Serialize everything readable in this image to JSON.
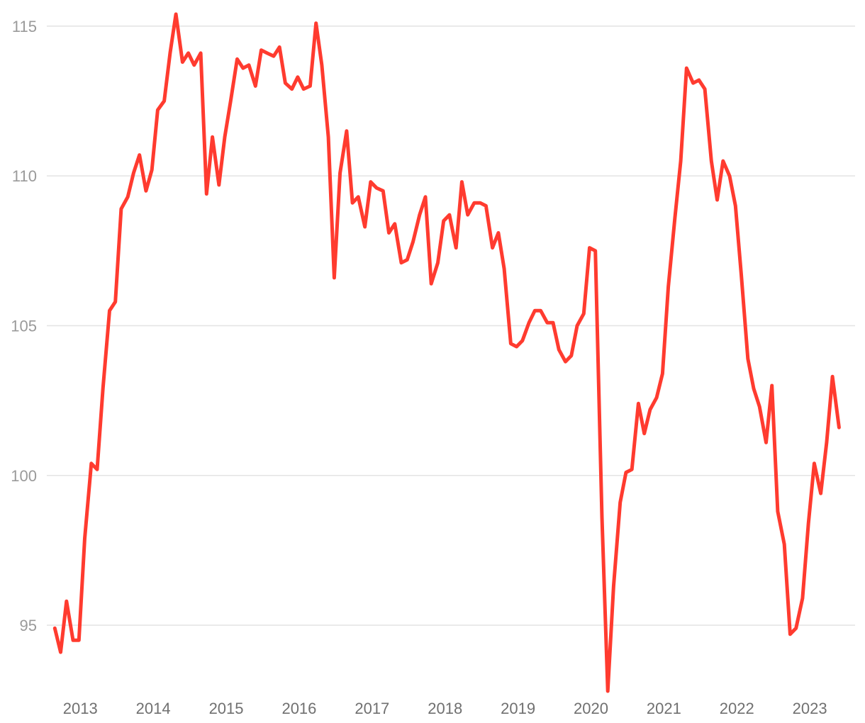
{
  "chart_data": {
    "type": "line",
    "title": "",
    "xlabel": "",
    "ylabel": "",
    "ylim": [
      92.8,
      115.4
    ],
    "xlim": [
      2012.56,
      2023.64
    ],
    "grid": true,
    "legend": "none",
    "y_ticks": [
      "95",
      "100",
      "105",
      "110",
      "115"
    ],
    "x_ticks": [
      "2013",
      "2014",
      "2015",
      "2016",
      "2017",
      "2018",
      "2019",
      "2020",
      "2021",
      "2022",
      "2023"
    ],
    "colors": {
      "line": "#ff3b2f",
      "grid": "#e3e3e3",
      "tick": "#9a9a9a"
    },
    "series": [
      {
        "x": [
          2012.67,
          2012.75,
          2012.83,
          2012.92,
          2013.0,
          2013.08,
          2013.17,
          2013.25,
          2013.33,
          2013.42,
          2013.5,
          2013.58,
          2013.67,
          2013.75,
          2013.83,
          2013.92,
          2014.0,
          2014.08,
          2014.17,
          2014.25,
          2014.33,
          2014.42,
          2014.5,
          2014.58,
          2014.67,
          2014.75,
          2014.83,
          2014.92,
          2015.0,
          2015.08,
          2015.17,
          2015.25,
          2015.33,
          2015.42,
          2015.5,
          2015.58,
          2015.67,
          2015.75,
          2015.83,
          2015.92,
          2016.0,
          2016.08,
          2016.17,
          2016.25,
          2016.33,
          2016.42,
          2016.5,
          2016.58,
          2016.67,
          2016.75,
          2016.83,
          2016.92,
          2017.0,
          2017.08,
          2017.17,
          2017.25,
          2017.33,
          2017.42,
          2017.5,
          2017.58,
          2017.67,
          2017.75,
          2017.83,
          2017.92,
          2018.0,
          2018.08,
          2018.17,
          2018.25,
          2018.33,
          2018.42,
          2018.5,
          2018.58,
          2018.67,
          2018.75,
          2018.83,
          2018.92,
          2019.0,
          2019.08,
          2019.17,
          2019.25,
          2019.33,
          2019.42,
          2019.5,
          2019.58,
          2019.67,
          2019.75,
          2019.83,
          2019.92,
          2020.0,
          2020.08,
          2020.17,
          2020.25,
          2020.33,
          2020.42,
          2020.5,
          2020.58,
          2020.67,
          2020.75,
          2020.83,
          2020.92,
          2021.0,
          2021.08,
          2021.17,
          2021.25,
          2021.33,
          2021.42,
          2021.5,
          2021.58,
          2021.67,
          2021.75,
          2021.83,
          2021.92,
          2022.0,
          2022.08,
          2022.17,
          2022.25,
          2022.33,
          2022.42,
          2022.5,
          2022.58,
          2022.67,
          2022.75,
          2022.83,
          2022.92,
          2023.0,
          2023.08,
          2023.17,
          2023.25,
          2023.33,
          2023.42
        ],
        "values": [
          94.9,
          94.1,
          95.8,
          94.5,
          94.5,
          97.9,
          100.4,
          100.2,
          102.9,
          105.5,
          105.8,
          108.9,
          109.3,
          110.1,
          110.7,
          109.5,
          110.2,
          112.2,
          112.5,
          114.1,
          115.4,
          113.8,
          114.1,
          113.7,
          114.1,
          109.4,
          111.3,
          109.7,
          111.3,
          112.5,
          113.9,
          113.6,
          113.7,
          113.0,
          114.2,
          114.1,
          114.0,
          114.3,
          113.1,
          112.9,
          113.3,
          112.9,
          113.0,
          115.1,
          113.7,
          111.3,
          106.6,
          110.1,
          111.5,
          109.1,
          109.3,
          108.3,
          109.8,
          109.6,
          109.5,
          108.1,
          108.4,
          107.1,
          107.2,
          107.8,
          108.7,
          109.3,
          106.4,
          107.1,
          108.5,
          108.7,
          107.6,
          109.8,
          108.7,
          109.1,
          109.1,
          109.0,
          107.6,
          108.1,
          106.9,
          104.4,
          104.3,
          104.5,
          105.1,
          105.5,
          105.5,
          105.1,
          105.1,
          104.2,
          103.8,
          104.0,
          105.0,
          105.4,
          107.6,
          107.5,
          98.6,
          92.8,
          96.3,
          99.1,
          100.1,
          100.2,
          102.4,
          101.4,
          102.2,
          102.6,
          103.4,
          106.3,
          108.6,
          110.5,
          113.6,
          113.1,
          113.2,
          112.9,
          110.5,
          109.2,
          110.5,
          110.0,
          109.0,
          106.7,
          103.9,
          102.9,
          102.3,
          101.1,
          103.0,
          98.8,
          97.7,
          94.7,
          94.9,
          95.9,
          98.4,
          100.4,
          99.4,
          101.1,
          103.3,
          101.6
        ]
      }
    ]
  }
}
